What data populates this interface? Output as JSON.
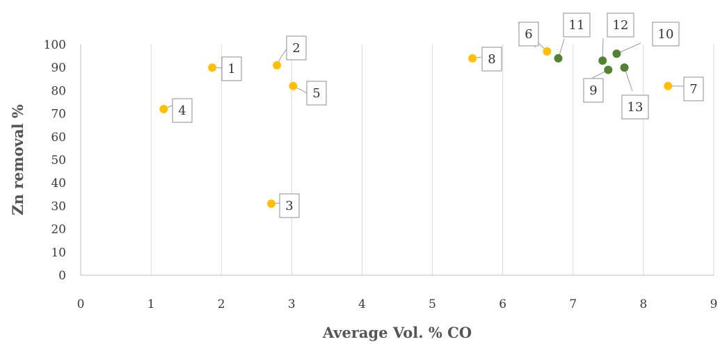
{
  "chart_data": {
    "type": "scatter",
    "xlabel": "Average Vol. % CO",
    "ylabel": "Zn removal %",
    "xlim": [
      0,
      9
    ],
    "ylim": [
      0,
      100
    ],
    "x_ticks": [
      "0",
      "1",
      "2",
      "3",
      "4",
      "5",
      "6",
      "7",
      "8",
      "9"
    ],
    "y_ticks": [
      "0",
      "10",
      "20",
      "30",
      "40",
      "50",
      "60",
      "70",
      "80",
      "90",
      "100"
    ],
    "grid": "vertical",
    "legend": "none",
    "series": [
      {
        "color": "#ffc000",
        "points": [
          {
            "label": "1",
            "x": 1.87,
            "y": 90
          },
          {
            "label": "2",
            "x": 2.79,
            "y": 91
          },
          {
            "label": "3",
            "x": 2.71,
            "y": 31
          },
          {
            "label": "4",
            "x": 1.18,
            "y": 72
          },
          {
            "label": "5",
            "x": 3.02,
            "y": 82
          },
          {
            "label": "6",
            "x": 6.63,
            "y": 97
          },
          {
            "label": "7",
            "x": 8.35,
            "y": 82
          },
          {
            "label": "8",
            "x": 5.57,
            "y": 94
          }
        ]
      },
      {
        "color": "#548235",
        "points": [
          {
            "label": "9",
            "x": 7.5,
            "y": 89
          },
          {
            "label": "10",
            "x": 7.62,
            "y": 96
          },
          {
            "label": "11",
            "x": 6.79,
            "y": 94
          },
          {
            "label": "12",
            "x": 7.42,
            "y": 93
          },
          {
            "label": "13",
            "x": 7.73,
            "y": 90
          }
        ]
      }
    ]
  }
}
